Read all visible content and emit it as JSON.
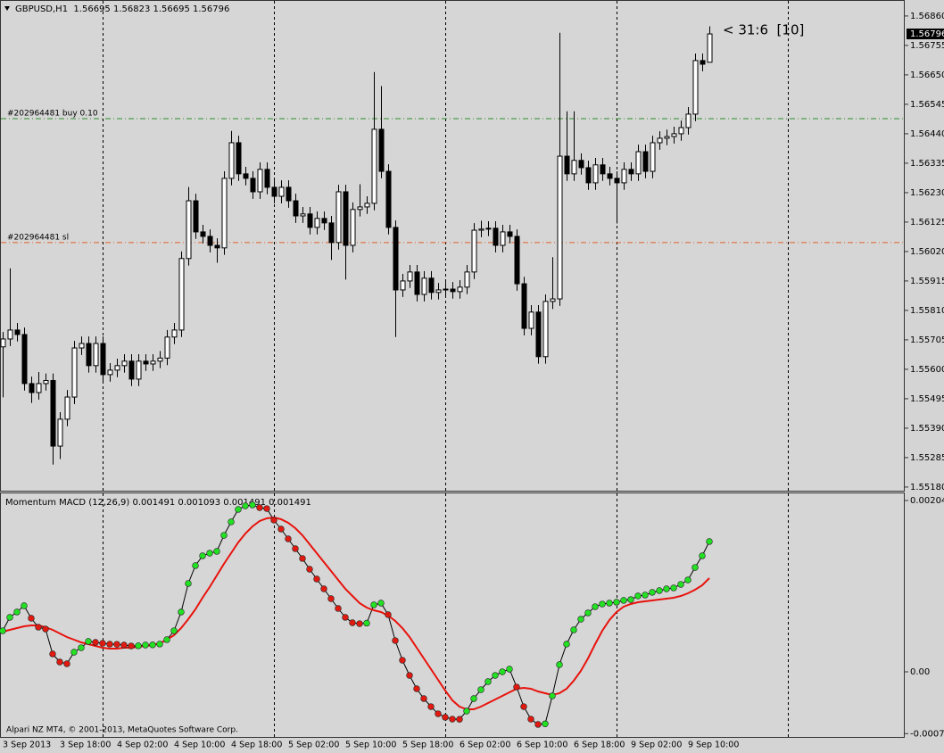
{
  "chart_data": [
    {
      "type": "candlestick",
      "title": "GBPUSD,H1  1.56695 1.56823 1.56695 1.56796",
      "annotation": "< 31:6  [10]",
      "up_color": "#ffffff",
      "down_color": "#000000",
      "edge_color": "#000000",
      "categories": [
        "3 Sep 2013",
        null,
        null,
        null,
        null,
        null,
        null,
        null,
        "3 Sep 18:00",
        null,
        null,
        null,
        null,
        null,
        null,
        null,
        "4 Sep 02:00",
        null,
        null,
        null,
        null,
        null,
        null,
        null,
        "4 Sep 10:00",
        null,
        null,
        null,
        null,
        null,
        null,
        null,
        "4 Sep 18:00",
        null,
        null,
        null,
        null,
        null,
        null,
        null,
        "5 Sep 02:00",
        null,
        null,
        null,
        null,
        null,
        null,
        null,
        "5 Sep 10:00",
        null,
        null,
        null,
        null,
        null,
        null,
        null,
        "5 Sep 18:00",
        null,
        null,
        null,
        null,
        null,
        null,
        null,
        "6 Sep 02:00",
        null,
        null,
        null,
        null,
        null,
        null,
        null,
        "6 Sep 10:00",
        null,
        null,
        null,
        null,
        null,
        null,
        null,
        "6 Sep 18:00",
        null,
        null,
        null,
        null,
        null,
        null,
        null,
        "9 Sep 02:00",
        null,
        null,
        null,
        null,
        null,
        null,
        null,
        "9 Sep 10:00",
        null,
        null,
        null
      ],
      "open": [
        1.5568,
        1.55708,
        1.5574,
        1.55724,
        1.55549,
        1.55517,
        1.55549,
        1.5556,
        1.55326,
        1.55422,
        1.55501,
        1.55676,
        1.55692,
        1.55613,
        1.55692,
        1.55581,
        1.55597,
        1.55613,
        1.55629,
        1.55565,
        1.55629,
        1.55619,
        1.55629,
        1.5564,
        1.55715,
        1.5574,
        1.55995,
        1.56201,
        1.5609,
        1.56074,
        1.56042,
        1.56033,
        1.56281,
        1.56408,
        1.56297,
        1.56281,
        1.56233,
        1.56313,
        1.56249,
        1.56217,
        1.56249,
        1.56201,
        1.56147,
        1.56154,
        1.56106,
        1.56138,
        1.56122,
        1.56052,
        1.56233,
        1.56042,
        1.5617,
        1.56179,
        1.56192,
        1.56456,
        1.56306,
        1.56106,
        1.55883,
        1.55915,
        1.55947,
        1.55867,
        1.55925,
        1.55874,
        1.55883,
        1.55886,
        1.55877,
        1.55893,
        1.55947,
        1.56096,
        1.561,
        1.56103,
        1.56042,
        1.5609,
        1.56074,
        1.55905,
        1.55746,
        1.55804,
        1.55645,
        1.55842,
        1.55851,
        1.5636,
        1.56297,
        1.56345,
        1.56319,
        1.56265,
        1.56329,
        1.56297,
        1.56281,
        1.56265,
        1.56313,
        1.56297,
        1.56376,
        1.56306,
        1.56408,
        1.56424,
        1.5643,
        1.5644,
        1.56462,
        1.5651,
        1.56701,
        1.56695
      ],
      "high": [
        1.55733,
        1.5596,
        1.55765,
        1.55749,
        1.55574,
        1.5559,
        1.55585,
        1.55585,
        1.55447,
        1.55526,
        1.55701,
        1.55717,
        1.55717,
        1.55717,
        1.55717,
        1.55622,
        1.55638,
        1.55654,
        1.55654,
        1.55654,
        1.55654,
        1.55654,
        1.55665,
        1.5574,
        1.55765,
        1.5602,
        1.5625,
        1.56226,
        1.56115,
        1.56099,
        1.56067,
        1.56306,
        1.5645,
        1.56433,
        1.56322,
        1.56306,
        1.56338,
        1.56338,
        1.56274,
        1.56274,
        1.56274,
        1.56226,
        1.56179,
        1.56179,
        1.56163,
        1.56163,
        1.56147,
        1.56258,
        1.56258,
        1.56195,
        1.5626,
        1.56217,
        1.5666,
        1.5661,
        1.56331,
        1.56131,
        1.5594,
        1.55972,
        1.55972,
        1.5595,
        1.5595,
        1.55908,
        1.55911,
        1.55911,
        1.55918,
        1.55972,
        1.56121,
        1.5613,
        1.56128,
        1.56128,
        1.56115,
        1.56115,
        1.56099,
        1.5593,
        1.55829,
        1.55829,
        1.55867,
        1.56,
        1.568,
        1.5652,
        1.5652,
        1.5637,
        1.56344,
        1.56354,
        1.56354,
        1.56322,
        1.56306,
        1.56338,
        1.56338,
        1.56401,
        1.56401,
        1.56433,
        1.56449,
        1.56455,
        1.56465,
        1.56487,
        1.56535,
        1.56726,
        1.56726,
        1.56823
      ],
      "low": [
        1.555,
        1.55683,
        1.55699,
        1.55524,
        1.5548,
        1.55492,
        1.55524,
        1.5526,
        1.5528,
        1.55397,
        1.55476,
        1.55651,
        1.55588,
        1.55588,
        1.55556,
        1.55556,
        1.55572,
        1.55588,
        1.5554,
        1.5554,
        1.55594,
        1.55594,
        1.55604,
        1.55615,
        1.5569,
        1.55715,
        1.5597,
        1.56065,
        1.56049,
        1.56017,
        1.5598,
        1.56008,
        1.56256,
        1.56272,
        1.56256,
        1.56208,
        1.56208,
        1.56224,
        1.56192,
        1.56192,
        1.56176,
        1.56122,
        1.56122,
        1.56081,
        1.56081,
        1.56097,
        1.5599,
        1.56027,
        1.5592,
        1.56017,
        1.56145,
        1.56154,
        1.56167,
        1.56281,
        1.56081,
        1.55715,
        1.55858,
        1.5589,
        1.55842,
        1.55842,
        1.55849,
        1.55849,
        1.55858,
        1.55852,
        1.55852,
        1.55868,
        1.55922,
        1.56071,
        1.56075,
        1.56017,
        1.56017,
        1.56049,
        1.5588,
        1.55721,
        1.55721,
        1.5562,
        1.5562,
        1.55815,
        1.55826,
        1.56272,
        1.56272,
        1.56294,
        1.5624,
        1.5624,
        1.56272,
        1.56256,
        1.5612,
        1.5624,
        1.56272,
        1.56272,
        1.56281,
        1.56281,
        1.56383,
        1.56399,
        1.56405,
        1.56415,
        1.56437,
        1.56485,
        1.56663,
        1.56695
      ],
      "close": [
        1.55708,
        1.5574,
        1.55724,
        1.55549,
        1.55517,
        1.55549,
        1.5556,
        1.55326,
        1.55422,
        1.55501,
        1.55676,
        1.55692,
        1.55613,
        1.55692,
        1.55581,
        1.55597,
        1.55613,
        1.55629,
        1.55565,
        1.55629,
        1.55619,
        1.55629,
        1.5564,
        1.55715,
        1.5574,
        1.55995,
        1.56201,
        1.5609,
        1.56074,
        1.56042,
        1.56033,
        1.56281,
        1.56408,
        1.56297,
        1.56281,
        1.56233,
        1.56313,
        1.56249,
        1.56217,
        1.56249,
        1.56201,
        1.56147,
        1.56154,
        1.56106,
        1.56138,
        1.56122,
        1.56052,
        1.56233,
        1.56042,
        1.5617,
        1.56179,
        1.56192,
        1.56456,
        1.56306,
        1.56106,
        1.55883,
        1.55915,
        1.55947,
        1.55867,
        1.55925,
        1.55874,
        1.55883,
        1.55886,
        1.55877,
        1.55893,
        1.55947,
        1.56096,
        1.561,
        1.56103,
        1.56042,
        1.5609,
        1.56074,
        1.55905,
        1.55746,
        1.55804,
        1.55645,
        1.55842,
        1.55851,
        1.5636,
        1.56297,
        1.56345,
        1.56319,
        1.56265,
        1.56329,
        1.56297,
        1.56281,
        1.56265,
        1.56313,
        1.56297,
        1.56376,
        1.56306,
        1.56408,
        1.56424,
        1.5643,
        1.5644,
        1.56462,
        1.5651,
        1.56701,
        1.56688,
        1.56796
      ],
      "levels": [
        {
          "label": "#202964481 buy 0.10",
          "value": 1.56494,
          "color": "#2f8f2f"
        },
        {
          "label": "#202964481 sl",
          "value": 1.56052,
          "color": "#e0602a"
        }
      ],
      "ylim": [
        1.55167,
        1.56917
      ],
      "yticks": [
        {
          "value": 1.5686,
          "label": "1.56860"
        },
        1.56755,
        {
          "value": 1.5665,
          "label": "1.56650"
        },
        1.56545,
        {
          "value": 1.5644,
          "label": "1.56440"
        },
        1.56335,
        {
          "value": 1.5623,
          "label": "1.56230"
        },
        1.56125,
        {
          "value": 1.5602,
          "label": "1.56020"
        },
        1.55915,
        {
          "value": 1.5581,
          "label": "1.55810"
        },
        1.55705,
        {
          "value": 1.556,
          "label": "1.55600"
        },
        1.55495,
        {
          "value": 1.5539,
          "label": "1.55390"
        },
        1.55285,
        {
          "value": 1.5518,
          "label": "1.55180"
        }
      ]
    },
    {
      "type": "macd",
      "title": "Momentum MACD (12,26,9) 0.001491 0.001093 0.001491 0.001491",
      "footer": "Alpari NZ MT4, © 2001-2013, MetaQuotes Software Corp.",
      "series": [
        {
          "color": "#000000",
          "up_color": "#22e022",
          "down_color": "#e01a10",
          "values": [
            0.000489,
            0.000649,
            0.000713,
            0.000787,
            0.000638,
            0.000532,
            0.00051,
            0.000213,
            0.000117,
            9.6e-05,
            0.000234,
            0.000287,
            0.000362,
            0.000351,
            0.00034,
            0.00033,
            0.000328,
            0.000319,
            0.000308,
            0.00031,
            0.000319,
            0.000321,
            0.00033,
            0.000383,
            0.000489,
            0.000713,
            0.001053,
            0.001266,
            0.001383,
            0.001414,
            0.001436,
            0.001627,
            0.001787,
            0.001936,
            0.001978,
            0.001989,
            0.001957,
            0.001946,
            0.001808,
            0.001702,
            0.001585,
            0.001468,
            0.001351,
            0.001223,
            0.001106,
            0.000989,
            0.000872,
            0.000755,
            0.000649,
            0.000585,
            0.000574,
            0.00058,
            0.000798,
            0.000819,
            0.000681,
            0.000372,
            0.000138,
            -4.3e-05,
            -0.000202,
            -0.000319,
            -0.000415,
            -0.0005,
            -0.000542,
            -0.000564,
            -0.000566,
            -0.000468,
            -0.000319,
            -0.000213,
            -0.000117,
            -4.3e-05,
            0.0,
            3.2e-05,
            -0.000181,
            -0.000415,
            -0.000564,
            -0.000627,
            -0.00062,
            -0.000287,
            8.5e-05,
            0.00033,
            0.0005,
            0.000627,
            0.000702,
            0.000776,
            0.000808,
            0.000819,
            0.00083,
            0.000851,
            0.000861,
            0.000904,
            0.000915,
            0.000947,
            0.000968,
            0.000989,
            0.001,
            0.001042,
            0.001095,
            0.001244,
            0.001383,
            0.001553
          ]
        },
        {
          "color": "#e8120c",
          "values": [
            0.000479,
            0.0005,
            0.000521,
            0.000542,
            0.000553,
            0.000553,
            0.000532,
            0.0005,
            0.000457,
            0.000415,
            0.000383,
            0.000351,
            0.00033,
            0.000308,
            0.000287,
            0.000277,
            0.000277,
            0.000287,
            0.000287,
            0.000298,
            0.000308,
            0.000319,
            0.00034,
            0.000383,
            0.000436,
            0.000521,
            0.000627,
            0.000744,
            0.000883,
            0.00101,
            0.001149,
            0.001287,
            0.001414,
            0.001542,
            0.001648,
            0.001734,
            0.001797,
            0.001829,
            0.00184,
            0.001819,
            0.001776,
            0.001712,
            0.001627,
            0.001521,
            0.001414,
            0.001308,
            0.001202,
            0.001095,
            0.000989,
            0.000904,
            0.000819,
            0.000766,
            0.000734,
            0.000713,
            0.00067,
            0.000606,
            0.000521,
            0.000415,
            0.000287,
            0.00016,
            3.2e-05,
            -9.6e-05,
            -0.000223,
            -0.00034,
            -0.000415,
            -0.000447,
            -0.000447,
            -0.000415,
            -0.000372,
            -0.00033,
            -0.000287,
            -0.000245,
            -0.000202,
            -0.000191,
            -0.000202,
            -0.000234,
            -0.000255,
            -0.000277,
            -0.000255,
            -0.000202,
            -0.000106,
            1.1e-05,
            0.00016,
            0.00033,
            0.000489,
            0.000617,
            0.000713,
            0.000776,
            0.000808,
            0.00083,
            0.00084,
            0.000851,
            0.000861,
            0.000872,
            0.000883,
            0.000904,
            0.000936,
            0.000978,
            0.001032,
            0.001117
          ]
        }
      ],
      "ylim": [
        -0.000787,
        0.002127
      ],
      "yticks": [
        0.002042,
        {
          "value": 0,
          "label": "0.00"
        },
        -0.000737
      ]
    }
  ]
}
